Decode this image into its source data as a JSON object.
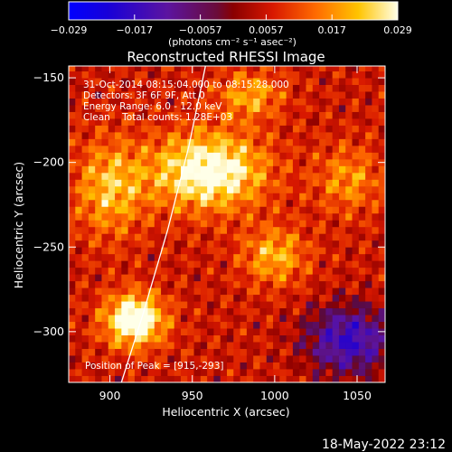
{
  "chart_data": {
    "type": "heatmap",
    "title": "Reconstructed RHESSI Image",
    "xlabel": "Heliocentric X (arcsec)",
    "ylabel": "Heliocentric Y (arcsec)",
    "xlim": [
      875,
      1067
    ],
    "ylim": [
      -330,
      -143
    ],
    "x_ticks": [
      900,
      950,
      1000,
      1050
    ],
    "y_ticks": [
      -150,
      -200,
      -250,
      -300
    ],
    "colorbar": {
      "ticks": [
        "-0.029",
        "-0.017",
        "-0.0057",
        "0.0057",
        "0.017",
        "0.029"
      ],
      "range": [
        -0.029,
        0.029
      ],
      "units_label": "(photons cm⁻² s⁻¹ asec⁻²)"
    },
    "annotations": [
      "31-Oct-2014 08:15:04.000 to 08:15:28.000",
      "Detectors: 3F 6F 9F, Att 0",
      "Energy Range: 6.0 - 12.0 keV",
      "Clean    Total counts: 1.28E+03"
    ],
    "peak_label": "Position of Peak = [915,-293]",
    "peak": [
      915,
      -293
    ],
    "limb_curve": [
      [
        907,
        -330
      ],
      [
        920,
        -290
      ],
      [
        935,
        -240
      ],
      [
        948,
        -190
      ],
      [
        958,
        -143
      ]
    ],
    "sources": [
      {
        "x": 960,
        "y": -205,
        "amp": 0.027,
        "sx": 24,
        "sy": 16
      },
      {
        "x": 915,
        "y": -293,
        "amp": 0.029,
        "sx": 13,
        "sy": 11
      },
      {
        "x": 900,
        "y": -215,
        "amp": 0.016,
        "sx": 15,
        "sy": 20
      },
      {
        "x": 985,
        "y": -160,
        "amp": 0.014,
        "sx": 14,
        "sy": 10
      },
      {
        "x": 1000,
        "y": -255,
        "amp": 0.015,
        "sx": 14,
        "sy": 12
      },
      {
        "x": 1045,
        "y": -210,
        "amp": 0.012,
        "sx": 14,
        "sy": 14
      },
      {
        "x": 1045,
        "y": -305,
        "amp": -0.022,
        "sx": 18,
        "sy": 14
      }
    ],
    "background_level": 0.006,
    "ripple_amplitude": 0.0055,
    "pixel_size_arcsec": 4
  },
  "footer_timestamp": "18-May-2022 23:12",
  "colors": {
    "background": "#000000",
    "text": "#ffffff"
  }
}
